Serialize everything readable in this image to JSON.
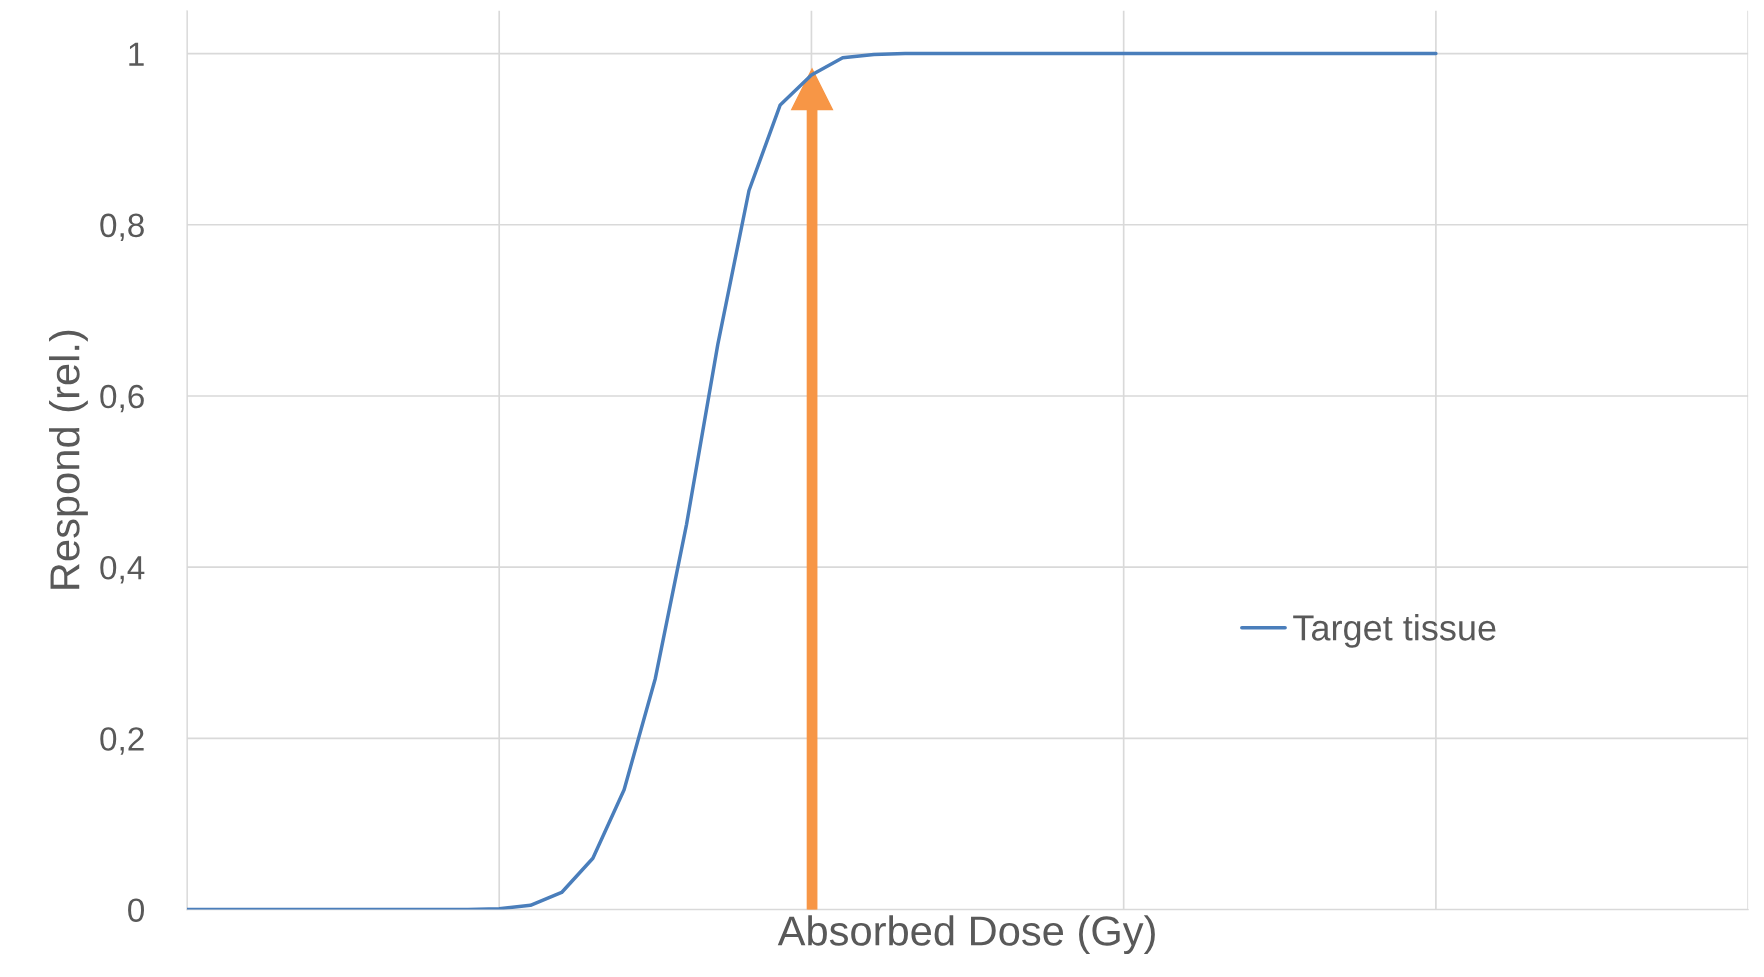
{
  "chart_data": {
    "type": "line",
    "xlabel": "Absorbed Dose (Gy)",
    "ylabel": "Respond (rel.)",
    "categories": [
      null,
      null,
      null,
      null,
      null,
      null,
      null,
      null,
      null,
      null,
      null,
      null,
      null,
      null,
      null,
      null,
      null,
      null,
      null,
      null,
      null,
      null,
      null,
      null,
      null,
      null,
      null,
      null,
      null,
      null,
      null,
      null,
      null,
      null,
      null,
      null,
      null,
      null,
      null,
      null,
      null,
      null,
      null,
      null,
      null,
      null,
      null,
      null,
      null,
      null,
      null
    ],
    "series": [
      {
        "name": "Target tissue",
        "color": "#4a7ebb",
        "values": [
          0,
          0,
          0,
          0,
          0,
          0,
          0,
          0,
          0,
          0,
          0.001,
          0.005,
          0.02,
          0.06,
          0.14,
          0.27,
          0.45,
          0.66,
          0.84,
          0.94,
          0.975,
          0.995,
          0.999,
          1,
          1,
          1,
          1,
          1,
          1,
          1,
          1,
          1,
          1,
          1,
          1,
          1,
          1,
          1,
          1,
          1,
          1,
          null,
          null,
          null,
          null,
          null,
          null,
          null,
          null,
          null,
          null
        ]
      }
    ],
    "ylim": [
      0,
      1.05
    ],
    "yticks": [
      0,
      {
        "value": 0.2,
        "label": "0,2"
      },
      {
        "value": 0.4,
        "label": "0,4"
      },
      {
        "value": 0.6,
        "label": "0,6"
      },
      {
        "value": 0.8,
        "label": "0,8"
      },
      1
    ],
    "grid": true,
    "legend": "right",
    "marker": "none",
    "line_style": "solid",
    "tick_labels": "y"
  }
}
